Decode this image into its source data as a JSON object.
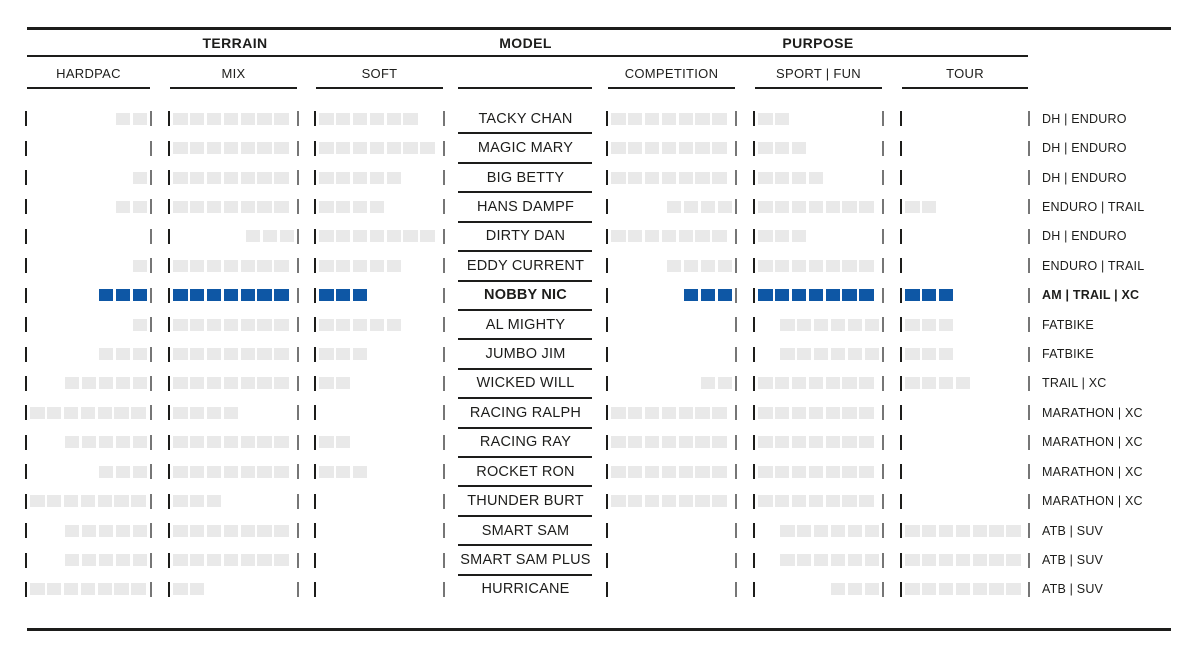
{
  "colors": {
    "highlight_blue": "#0e57a5",
    "rating_gray": "#e9e9e9",
    "text_dark": "#1d1d1b",
    "bar_dark": "#1d1d1b",
    "bar_gray": "#767676"
  },
  "chart_data": {
    "type": "table",
    "scale_max": 7,
    "column_groups": {
      "terrain": "TERRAIN",
      "model": "MODEL",
      "purpose": "PURPOSE"
    },
    "columns": {
      "hardpac": "HARDPAC",
      "mix": "MIX",
      "soft": "SOFT",
      "competition": "COMPETITION",
      "sport_fun": "SPORT | FUN",
      "tour": "TOUR"
    },
    "rows": [
      {
        "model": "TACKY CHAN",
        "tag": "DH | ENDURO",
        "highlighted": false,
        "ratings": {
          "hardpac": {
            "value": 2,
            "align": "right"
          },
          "mix": {
            "value": 7,
            "align": "left"
          },
          "soft": {
            "value": 6,
            "align": "left"
          },
          "competition": {
            "value": 7,
            "align": "left"
          },
          "sport_fun": {
            "value": 2,
            "align": "left"
          },
          "tour": {
            "value": 0,
            "align": "left"
          }
        }
      },
      {
        "model": "MAGIC MARY",
        "tag": "DH | ENDURO",
        "highlighted": false,
        "ratings": {
          "hardpac": {
            "value": 0,
            "align": "right"
          },
          "mix": {
            "value": 7,
            "align": "left"
          },
          "soft": {
            "value": 7,
            "align": "left"
          },
          "competition": {
            "value": 7,
            "align": "left"
          },
          "sport_fun": {
            "value": 3,
            "align": "left"
          },
          "tour": {
            "value": 0,
            "align": "left"
          }
        }
      },
      {
        "model": "BIG BETTY",
        "tag": "DH | ENDURO",
        "highlighted": false,
        "ratings": {
          "hardpac": {
            "value": 1,
            "align": "right"
          },
          "mix": {
            "value": 7,
            "align": "left"
          },
          "soft": {
            "value": 5,
            "align": "left"
          },
          "competition": {
            "value": 7,
            "align": "left"
          },
          "sport_fun": {
            "value": 4,
            "align": "left"
          },
          "tour": {
            "value": 0,
            "align": "left"
          }
        }
      },
      {
        "model": "HANS DAMPF",
        "tag": "ENDURO | TRAIL",
        "highlighted": false,
        "ratings": {
          "hardpac": {
            "value": 2,
            "align": "right"
          },
          "mix": {
            "value": 7,
            "align": "left"
          },
          "soft": {
            "value": 4,
            "align": "left"
          },
          "competition": {
            "value": 4,
            "align": "right"
          },
          "sport_fun": {
            "value": 7,
            "align": "left"
          },
          "tour": {
            "value": 2,
            "align": "left"
          }
        }
      },
      {
        "model": "DIRTY DAN",
        "tag": "DH | ENDURO",
        "highlighted": false,
        "ratings": {
          "hardpac": {
            "value": 0,
            "align": "right"
          },
          "mix": {
            "value": 3,
            "align": "right"
          },
          "soft": {
            "value": 7,
            "align": "left"
          },
          "competition": {
            "value": 7,
            "align": "left"
          },
          "sport_fun": {
            "value": 3,
            "align": "left"
          },
          "tour": {
            "value": 0,
            "align": "left"
          }
        }
      },
      {
        "model": "EDDY CURRENT",
        "tag": "ENDURO | TRAIL",
        "highlighted": false,
        "ratings": {
          "hardpac": {
            "value": 1,
            "align": "right"
          },
          "mix": {
            "value": 7,
            "align": "left"
          },
          "soft": {
            "value": 5,
            "align": "left"
          },
          "competition": {
            "value": 4,
            "align": "right"
          },
          "sport_fun": {
            "value": 7,
            "align": "left"
          },
          "tour": {
            "value": 0,
            "align": "left"
          }
        }
      },
      {
        "model": "NOBBY NIC",
        "tag": "AM | TRAIL | XC",
        "highlighted": true,
        "ratings": {
          "hardpac": {
            "value": 3,
            "align": "right"
          },
          "mix": {
            "value": 7,
            "align": "left"
          },
          "soft": {
            "value": 3,
            "align": "left"
          },
          "competition": {
            "value": 3,
            "align": "right"
          },
          "sport_fun": {
            "value": 7,
            "align": "left"
          },
          "tour": {
            "value": 3,
            "align": "left"
          }
        }
      },
      {
        "model": "AL MIGHTY",
        "tag": "FATBIKE",
        "highlighted": false,
        "ratings": {
          "hardpac": {
            "value": 1,
            "align": "right"
          },
          "mix": {
            "value": 7,
            "align": "left"
          },
          "soft": {
            "value": 5,
            "align": "left"
          },
          "competition": {
            "value": 0,
            "align": "right"
          },
          "sport_fun": {
            "value": 6,
            "align": "right"
          },
          "tour": {
            "value": 3,
            "align": "left"
          }
        }
      },
      {
        "model": "JUMBO JIM",
        "tag": "FATBIKE",
        "highlighted": false,
        "ratings": {
          "hardpac": {
            "value": 3,
            "align": "right"
          },
          "mix": {
            "value": 7,
            "align": "left"
          },
          "soft": {
            "value": 3,
            "align": "left"
          },
          "competition": {
            "value": 0,
            "align": "right"
          },
          "sport_fun": {
            "value": 6,
            "align": "right"
          },
          "tour": {
            "value": 3,
            "align": "left"
          }
        }
      },
      {
        "model": "WICKED WILL",
        "tag": "TRAIL | XC",
        "highlighted": false,
        "ratings": {
          "hardpac": {
            "value": 5,
            "align": "right"
          },
          "mix": {
            "value": 7,
            "align": "left"
          },
          "soft": {
            "value": 2,
            "align": "left"
          },
          "competition": {
            "value": 2,
            "align": "right"
          },
          "sport_fun": {
            "value": 7,
            "align": "left"
          },
          "tour": {
            "value": 4,
            "align": "left"
          }
        }
      },
      {
        "model": "RACING RALPH",
        "tag": "MARATHON | XC",
        "highlighted": false,
        "ratings": {
          "hardpac": {
            "value": 7,
            "align": "left"
          },
          "mix": {
            "value": 4,
            "align": "left"
          },
          "soft": {
            "value": 0,
            "align": "left"
          },
          "competition": {
            "value": 7,
            "align": "left"
          },
          "sport_fun": {
            "value": 7,
            "align": "left"
          },
          "tour": {
            "value": 0,
            "align": "left"
          }
        }
      },
      {
        "model": "RACING RAY",
        "tag": "MARATHON | XC",
        "highlighted": false,
        "ratings": {
          "hardpac": {
            "value": 5,
            "align": "right"
          },
          "mix": {
            "value": 7,
            "align": "left"
          },
          "soft": {
            "value": 2,
            "align": "left"
          },
          "competition": {
            "value": 7,
            "align": "left"
          },
          "sport_fun": {
            "value": 7,
            "align": "left"
          },
          "tour": {
            "value": 0,
            "align": "left"
          }
        }
      },
      {
        "model": "ROCKET RON",
        "tag": "MARATHON | XC",
        "highlighted": false,
        "ratings": {
          "hardpac": {
            "value": 3,
            "align": "right"
          },
          "mix": {
            "value": 7,
            "align": "left"
          },
          "soft": {
            "value": 3,
            "align": "left"
          },
          "competition": {
            "value": 7,
            "align": "left"
          },
          "sport_fun": {
            "value": 7,
            "align": "left"
          },
          "tour": {
            "value": 0,
            "align": "left"
          }
        }
      },
      {
        "model": "THUNDER BURT",
        "tag": "MARATHON | XC",
        "highlighted": false,
        "ratings": {
          "hardpac": {
            "value": 7,
            "align": "left"
          },
          "mix": {
            "value": 3,
            "align": "left"
          },
          "soft": {
            "value": 0,
            "align": "left"
          },
          "competition": {
            "value": 7,
            "align": "left"
          },
          "sport_fun": {
            "value": 7,
            "align": "left"
          },
          "tour": {
            "value": 0,
            "align": "left"
          }
        }
      },
      {
        "model": "SMART SAM",
        "tag": "ATB | SUV",
        "highlighted": false,
        "ratings": {
          "hardpac": {
            "value": 5,
            "align": "right"
          },
          "mix": {
            "value": 7,
            "align": "left"
          },
          "soft": {
            "value": 0,
            "align": "left"
          },
          "competition": {
            "value": 0,
            "align": "right"
          },
          "sport_fun": {
            "value": 6,
            "align": "right"
          },
          "tour": {
            "value": 7,
            "align": "left"
          }
        }
      },
      {
        "model": "SMART SAM PLUS",
        "tag": "ATB | SUV",
        "highlighted": false,
        "ratings": {
          "hardpac": {
            "value": 5,
            "align": "right"
          },
          "mix": {
            "value": 7,
            "align": "left"
          },
          "soft": {
            "value": 0,
            "align": "left"
          },
          "competition": {
            "value": 0,
            "align": "right"
          },
          "sport_fun": {
            "value": 6,
            "align": "right"
          },
          "tour": {
            "value": 7,
            "align": "left"
          }
        }
      },
      {
        "model": "HURRICANE",
        "tag": "ATB | SUV",
        "highlighted": false,
        "ratings": {
          "hardpac": {
            "value": 7,
            "align": "left"
          },
          "mix": {
            "value": 2,
            "align": "left"
          },
          "soft": {
            "value": 0,
            "align": "left"
          },
          "competition": {
            "value": 0,
            "align": "right"
          },
          "sport_fun": {
            "value": 3,
            "align": "right"
          },
          "tour": {
            "value": 7,
            "align": "left"
          }
        }
      }
    ]
  }
}
